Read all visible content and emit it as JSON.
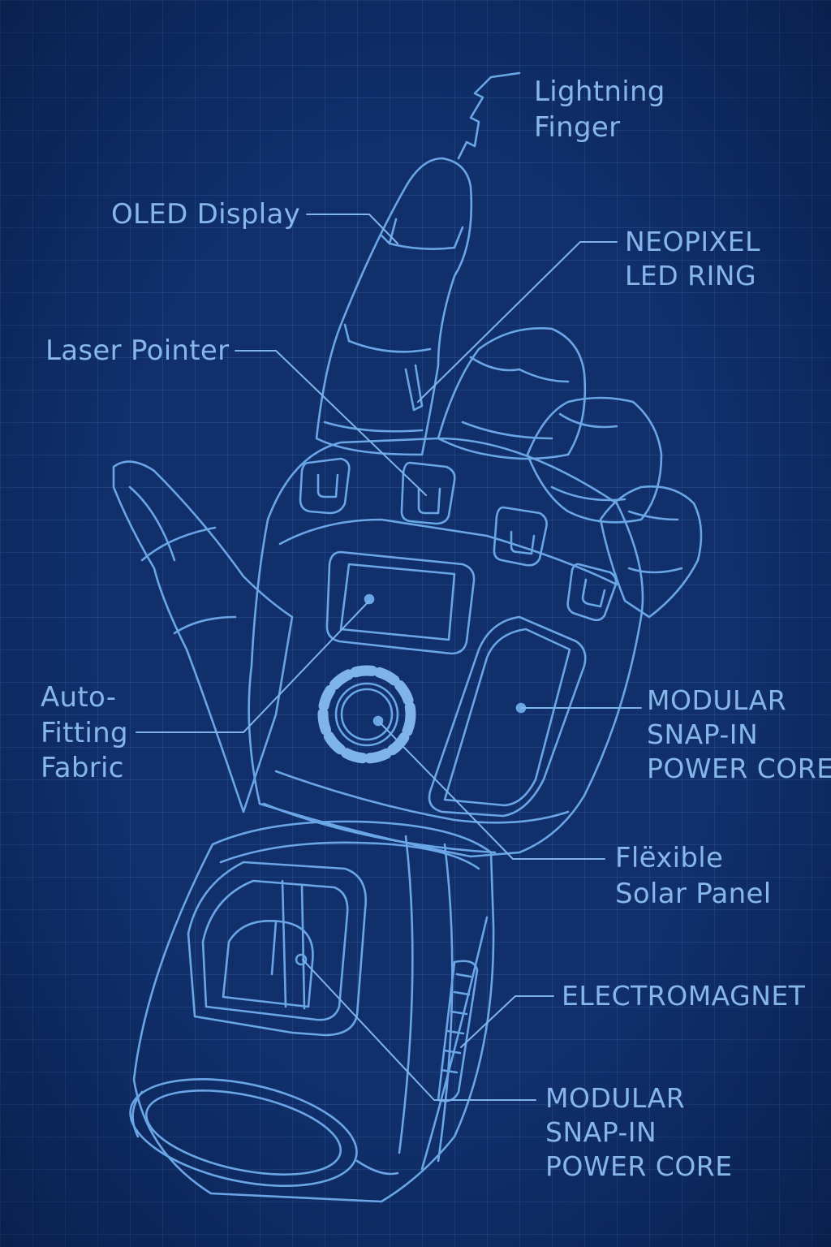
{
  "labels": {
    "lightning_finger": [
      "Lightning",
      "Finger"
    ],
    "oled_display": "OLED Display",
    "neopixel_led_ring": [
      "NEOPIXEL",
      "LED RING"
    ],
    "laser_pointer": "Laser Pointer",
    "auto_fitting_fabric": [
      "Auto-",
      "Fitting",
      "Fabric"
    ],
    "modular_power_core_top": [
      "MODULAR",
      "SNAP-IN",
      "POWER CORE"
    ],
    "flexible_solar_panel": [
      "Flëxible",
      "Solar Panel"
    ],
    "electromagnet": "ELECTROMAGNET",
    "modular_power_core_bottom": [
      "MODULAR",
      "SNAP-IN",
      "POWER CORE"
    ]
  },
  "colors": {
    "background": "#102f6b",
    "grid": "#5a8cd2",
    "line": "#6aa6e6",
    "text": "#86b6ea"
  }
}
